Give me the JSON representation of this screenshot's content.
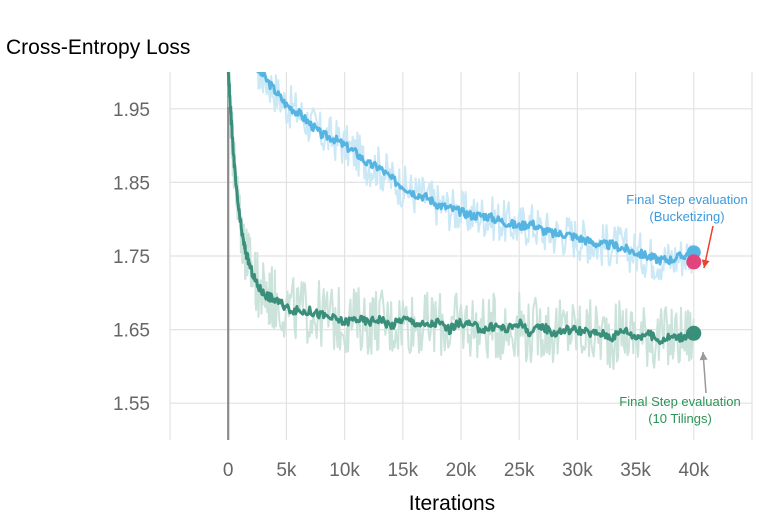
{
  "chart_data": {
    "type": "line",
    "title": "Cross-Entropy Loss",
    "xlabel": "Iterations",
    "ylabel": "",
    "xlim": [
      -5000,
      45000
    ],
    "ylim": [
      1.5,
      2.0
    ],
    "x_ticks": [
      0,
      5000,
      10000,
      15000,
      20000,
      25000,
      30000,
      35000,
      40000
    ],
    "x_tick_labels": [
      "0",
      "5k",
      "10k",
      "15k",
      "20k",
      "25k",
      "30k",
      "35k",
      "40k"
    ],
    "y_ticks": [
      1.55,
      1.65,
      1.75,
      1.85,
      1.95
    ],
    "y_tick_labels": [
      "1.55",
      "1.65",
      "1.75",
      "1.85",
      "1.95"
    ],
    "grid": true,
    "series": [
      {
        "name": "",
        "color": "#56b4e2",
        "raw_color": "#cbe8f6",
        "x": [
          2500,
          3000,
          4000,
          5000,
          6000,
          7000,
          8000,
          9000,
          10000,
          11000,
          12000,
          13000,
          14000,
          15000,
          16000,
          17000,
          18000,
          19000,
          20000,
          21000,
          22000,
          23000,
          24000,
          25000,
          26000,
          27000,
          28000,
          29000,
          30000,
          31000,
          32000,
          33000,
          34000,
          35000,
          36000,
          37000,
          38000,
          39000,
          40000
        ],
        "values": [
          2.005,
          1.995,
          1.975,
          1.955,
          1.945,
          1.93,
          1.915,
          1.91,
          1.9,
          1.89,
          1.875,
          1.87,
          1.855,
          1.845,
          1.835,
          1.83,
          1.82,
          1.815,
          1.81,
          1.805,
          1.805,
          1.8,
          1.795,
          1.79,
          1.795,
          1.785,
          1.78,
          1.78,
          1.775,
          1.77,
          1.765,
          1.765,
          1.76,
          1.755,
          1.75,
          1.745,
          1.745,
          1.75,
          1.755
        ]
      },
      {
        "name": "",
        "color": "#3a8f7b",
        "raw_color": "#cce3dc",
        "x": [
          0,
          200,
          400,
          700,
          1000,
          1300,
          1600,
          2000,
          2500,
          3000,
          3500,
          4000,
          5000,
          6000,
          7000,
          8000,
          9000,
          10000,
          11000,
          12000,
          13000,
          14000,
          15000,
          16000,
          17000,
          18000,
          19000,
          20000,
          21000,
          22000,
          23000,
          24000,
          25000,
          26000,
          27000,
          28000,
          29000,
          30000,
          31000,
          32000,
          33000,
          34000,
          35000,
          36000,
          37000,
          38000,
          39000,
          40000
        ],
        "values": [
          2.005,
          1.95,
          1.9,
          1.84,
          1.8,
          1.77,
          1.75,
          1.73,
          1.71,
          1.7,
          1.695,
          1.69,
          1.68,
          1.675,
          1.675,
          1.67,
          1.665,
          1.66,
          1.665,
          1.66,
          1.665,
          1.655,
          1.665,
          1.66,
          1.655,
          1.66,
          1.65,
          1.66,
          1.655,
          1.65,
          1.655,
          1.65,
          1.66,
          1.645,
          1.655,
          1.645,
          1.65,
          1.65,
          1.645,
          1.645,
          1.64,
          1.65,
          1.64,
          1.645,
          1.635,
          1.64,
          1.64,
          1.645
        ]
      }
    ],
    "final_points": [
      {
        "name": "Final Step evaluation (Bucketizing)",
        "x": 40000,
        "value": 1.742,
        "color": "#e0457b"
      },
      {
        "name": "Final Step evaluation (10 Tilings)",
        "x": 40000,
        "value": 1.645,
        "color": "#3a8f7b"
      }
    ],
    "annotations": [
      {
        "lines": [
          "Final Step evaluation",
          "(Bucketizing)"
        ],
        "color": "#3b9be0",
        "arrow_color": "#e8432b"
      },
      {
        "lines": [
          "Final Step evaluation",
          "(10 Tilings)"
        ],
        "color": "#2c9457",
        "arrow_color": "#999999"
      }
    ]
  }
}
